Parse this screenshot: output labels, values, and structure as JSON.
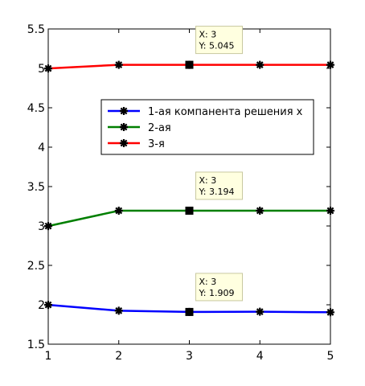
{
  "chart_data": {
    "type": "line",
    "x": [
      1,
      2,
      3,
      4,
      5
    ],
    "xlim": [
      1,
      5
    ],
    "ylim": [
      1.5,
      5.5
    ],
    "xticks": [
      1,
      2,
      3,
      4,
      5
    ],
    "yticks": [
      1.5,
      2,
      2.5,
      3,
      3.5,
      4,
      4.5,
      5,
      5.5
    ],
    "grid": false,
    "legend_placement": "center-right",
    "series": [
      {
        "name": "1-ая компанента решения x",
        "color": "#0000ff",
        "values": [
          1.999,
          1.925,
          1.909,
          1.912,
          1.905
        ]
      },
      {
        "name": "2-ая",
        "color": "#007f00",
        "values": [
          2.999,
          3.194,
          3.194,
          3.194,
          3.194
        ]
      },
      {
        "name": "3-я",
        "color": "#ff0000",
        "values": [
          4.999,
          5.045,
          5.045,
          5.045,
          5.045
        ]
      }
    ],
    "datatips": [
      {
        "series": 0,
        "x": 3,
        "y": 1.909,
        "label_x": "X: 3",
        "label_y": "Y: 1.909"
      },
      {
        "series": 1,
        "x": 3,
        "y": 3.194,
        "label_x": "X: 3",
        "label_y": "Y: 3.194"
      },
      {
        "series": 2,
        "x": 3,
        "y": 5.045,
        "label_x": "X: 3",
        "label_y": "Y: 5.045"
      }
    ]
  }
}
